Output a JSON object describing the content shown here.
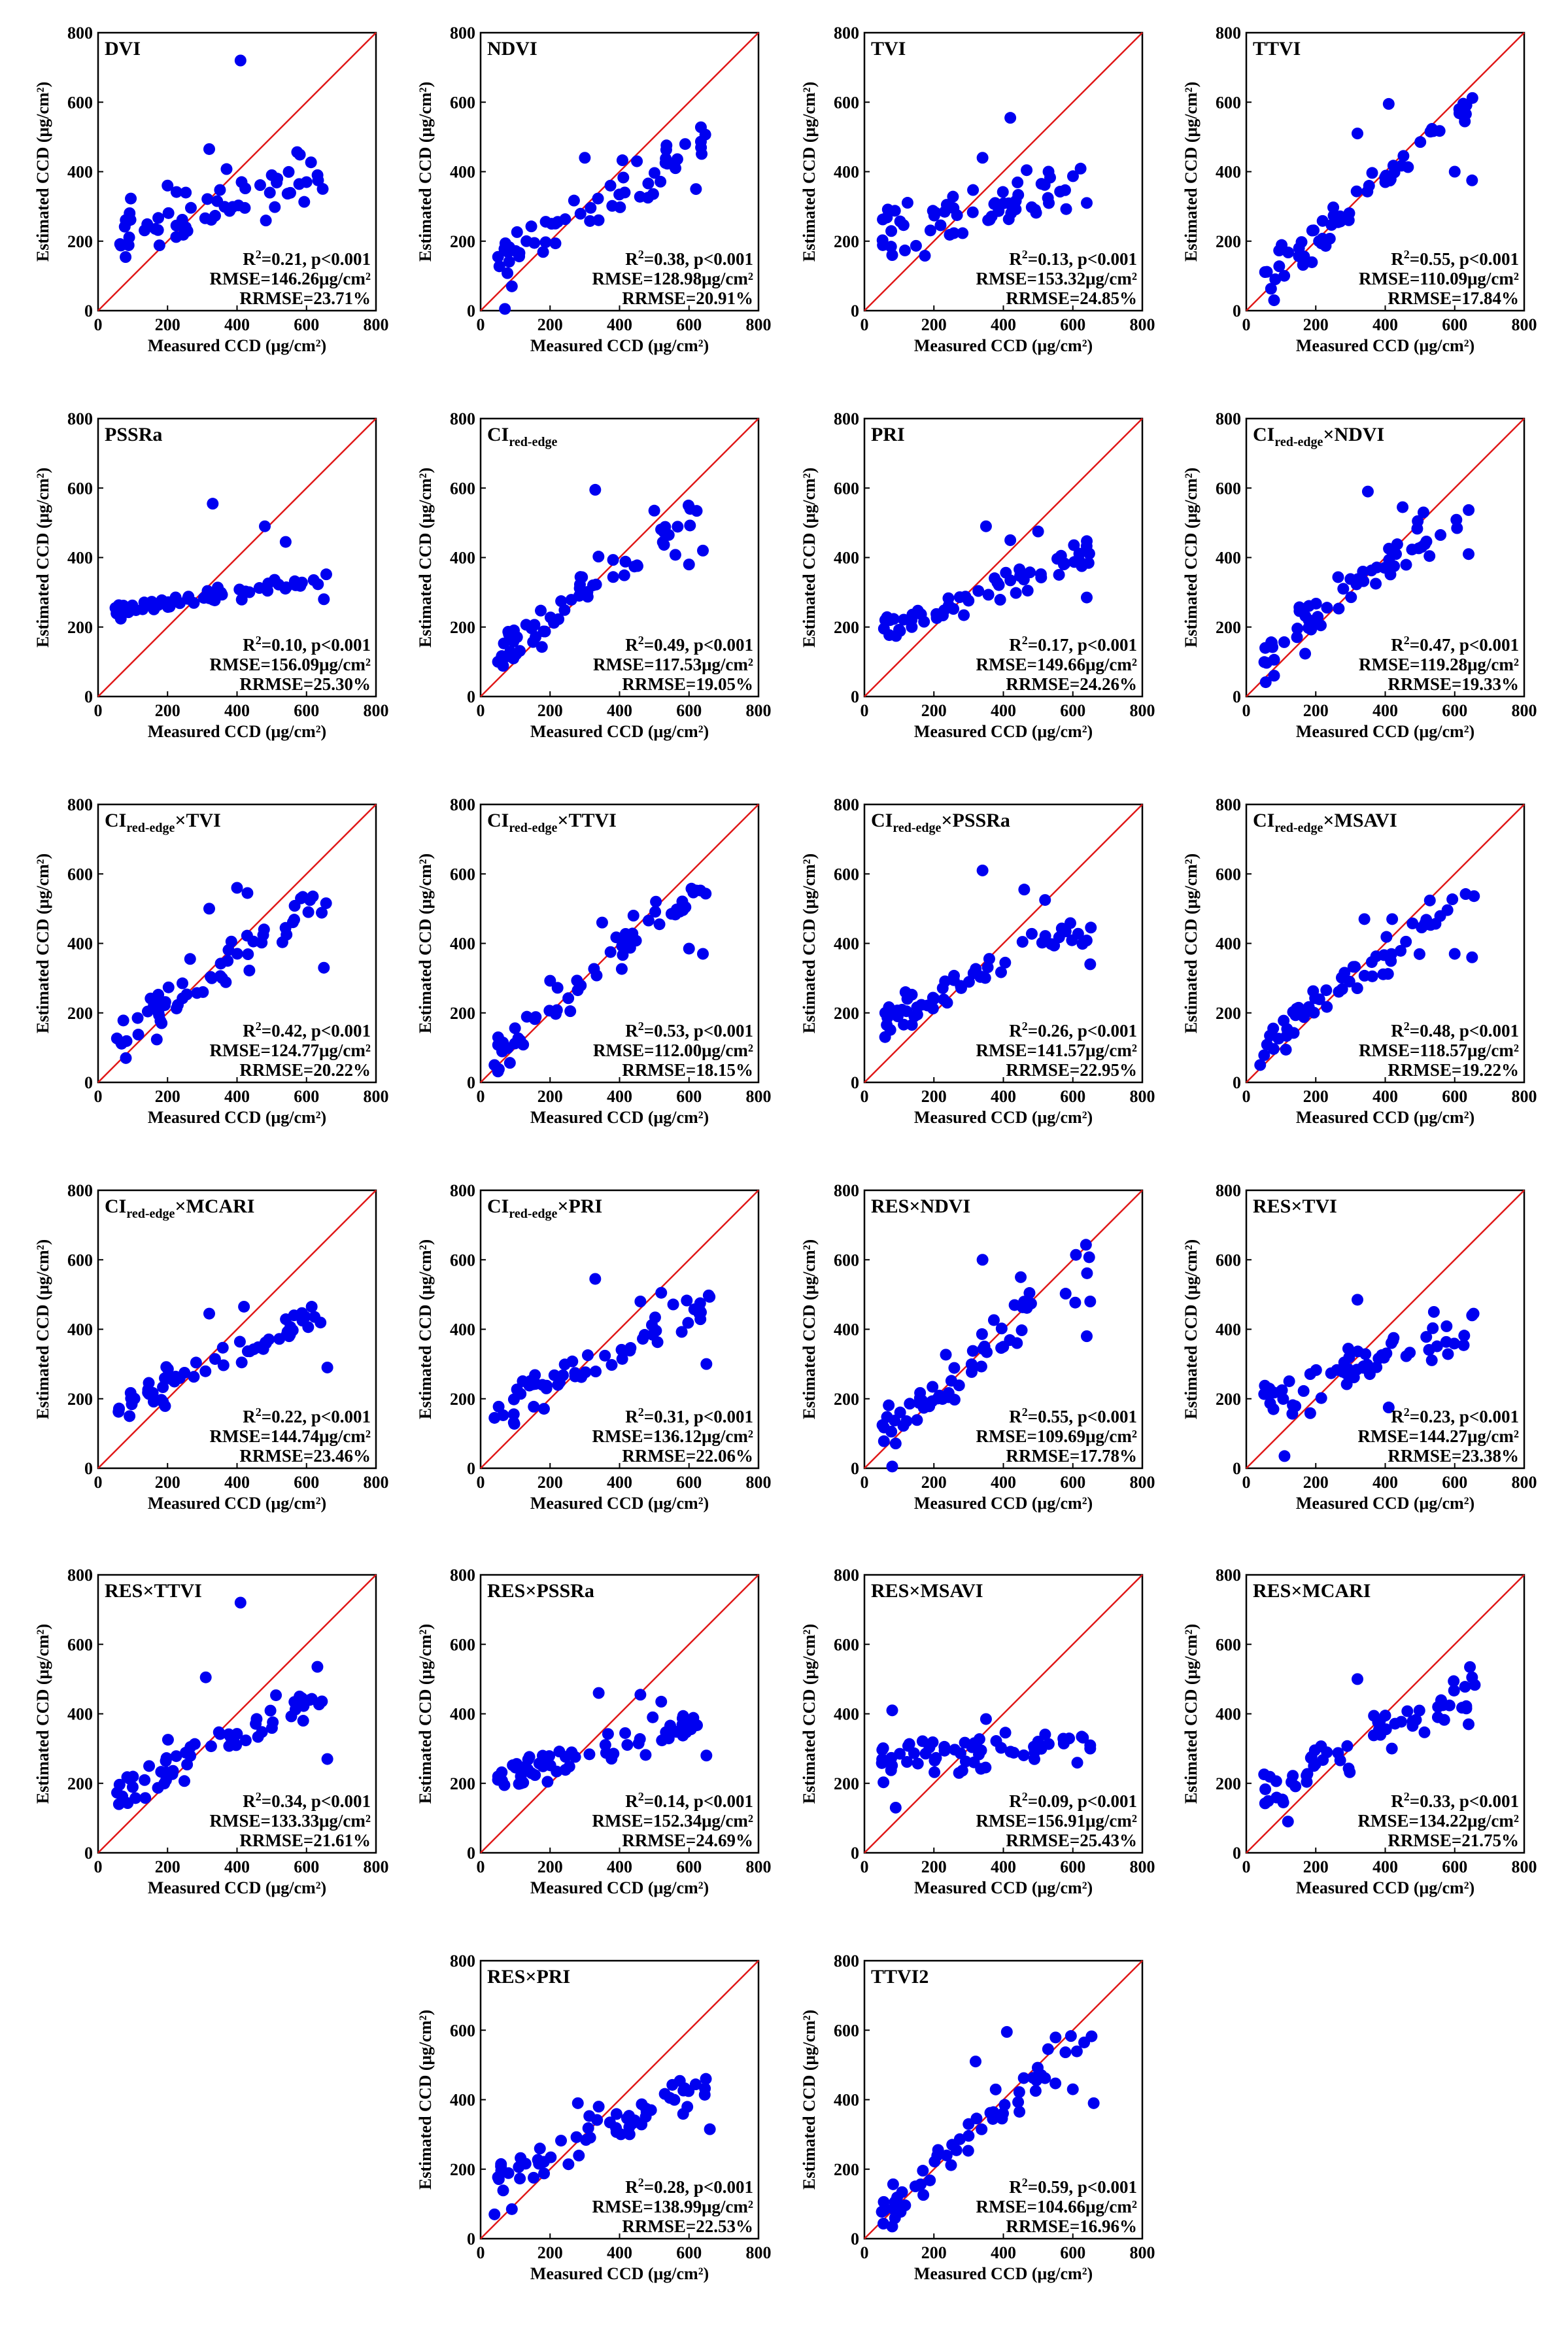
{
  "figure": {
    "xlabel": "Measured CCD (μg/cm²)",
    "ylabel": "Estimated CCD (μg/cm²)"
  },
  "chart_data": [
    {
      "type": "scatter",
      "title": "DVI",
      "xlim": [
        0,
        800
      ],
      "ylim": [
        0,
        800
      ],
      "r2": "0.21",
      "p": "p<0.001",
      "rmse": "146.26μg/cm²",
      "rrmse": "23.71%",
      "seed": 11,
      "spread": 0.55,
      "slope": 0.35,
      "x": [
        410,
        320,
        200,
        500,
        600
      ],
      "y": [
        720,
        465,
        360,
        390,
        370
      ]
    },
    {
      "type": "scatter",
      "title": "NDVI",
      "xlim": [
        0,
        800
      ],
      "ylim": [
        0,
        800
      ],
      "r2": "0.38",
      "p": "p<0.001",
      "rmse": "128.98μg/cm²",
      "rrmse": "20.91%",
      "seed": 12,
      "spread": 0.45,
      "slope": 0.55,
      "x": [
        70,
        90,
        300,
        450,
        620
      ],
      "y": [
        5,
        70,
        440,
        430,
        350
      ]
    },
    {
      "type": "scatter",
      "title": "TVI",
      "xlim": [
        0,
        800
      ],
      "ylim": [
        0,
        800
      ],
      "r2": "0.13",
      "p": "p<0.001",
      "rmse": "153.32μg/cm²",
      "rrmse": "24.85%",
      "seed": 13,
      "spread": 0.5,
      "slope": 0.25,
      "x": [
        420,
        80,
        340,
        530,
        640
      ],
      "y": [
        555,
        160,
        440,
        400,
        310
      ]
    },
    {
      "type": "scatter",
      "title": "TTVI",
      "xlim": [
        0,
        800
      ],
      "ylim": [
        0,
        800
      ],
      "r2": "0.55",
      "p": "p<0.001",
      "rmse": "110.09μg/cm²",
      "rrmse": "17.84%",
      "seed": 14,
      "spread": 0.35,
      "slope": 0.85,
      "x": [
        410,
        320,
        80,
        600,
        650
      ],
      "y": [
        595,
        510,
        30,
        400,
        375
      ]
    },
    {
      "type": "scatter",
      "title": "PSSRa",
      "xlim": [
        0,
        800
      ],
      "ylim": [
        0,
        800
      ],
      "r2": "0.10",
      "p": "p<0.001",
      "rmse": "156.09μg/cm²",
      "rrmse": "25.30%",
      "seed": 15,
      "spread": 0.12,
      "slope": 0.15,
      "x": [
        330,
        480,
        540,
        50,
        650
      ],
      "y": [
        555,
        490,
        445,
        255,
        280
      ]
    },
    {
      "type": "scatter",
      "title": "CI",
      "sub": "red-edge",
      "xlim": [
        0,
        800
      ],
      "ylim": [
        0,
        800
      ],
      "r2": "0.49",
      "p": "p<0.001",
      "rmse": "117.53μg/cm²",
      "rrmse": "19.05%",
      "seed": 16,
      "spread": 0.38,
      "slope": 0.75,
      "x": [
        330,
        500,
        50,
        640,
        600
      ],
      "y": [
        595,
        535,
        100,
        420,
        380
      ]
    },
    {
      "type": "scatter",
      "title": "PRI",
      "xlim": [
        0,
        800
      ],
      "ylim": [
        0,
        800
      ],
      "r2": "0.17",
      "p": "p<0.001",
      "rmse": "149.66μg/cm²",
      "rrmse": "24.26%",
      "seed": 17,
      "spread": 0.3,
      "slope": 0.35,
      "x": [
        350,
        500,
        60,
        640,
        420
      ],
      "y": [
        490,
        475,
        220,
        285,
        450
      ]
    },
    {
      "type": "scatter",
      "title": "CI",
      "sub": "red-edge",
      "suffix": "×NDVI",
      "xlim": [
        0,
        800
      ],
      "ylim": [
        0,
        800
      ],
      "r2": "0.47",
      "p": "p<0.001",
      "rmse": "119.28μg/cm²",
      "rrmse": "19.33%",
      "seed": 18,
      "spread": 0.38,
      "slope": 0.72,
      "x": [
        350,
        450,
        80,
        640,
        510
      ],
      "y": [
        590,
        545,
        60,
        410,
        530
      ]
    },
    {
      "type": "scatter",
      "title": "CI",
      "sub": "red-edge",
      "suffix": "×TVI",
      "xlim": [
        0,
        800
      ],
      "ylim": [
        0,
        800
      ],
      "r2": "0.42",
      "p": "p<0.001",
      "rmse": "124.77μg/cm²",
      "rrmse": "20.22%",
      "seed": 19,
      "spread": 0.42,
      "slope": 0.7,
      "x": [
        400,
        430,
        320,
        80,
        650
      ],
      "y": [
        560,
        545,
        500,
        70,
        330
      ]
    },
    {
      "type": "scatter",
      "title": "CI",
      "sub": "red-edge",
      "suffix": "×TTVI",
      "xlim": [
        0,
        800
      ],
      "ylim": [
        0,
        800
      ],
      "r2": "0.53",
      "p": "p<0.001",
      "rmse": "112.00μg/cm²",
      "rrmse": "18.15%",
      "seed": 20,
      "spread": 0.35,
      "slope": 0.8,
      "x": [
        440,
        350,
        40,
        640,
        600
      ],
      "y": [
        480,
        460,
        50,
        370,
        385
      ]
    },
    {
      "type": "scatter",
      "title": "CI",
      "sub": "red-edge",
      "suffix": "×PSSRa",
      "xlim": [
        0,
        800
      ],
      "ylim": [
        0,
        800
      ],
      "r2": "0.26",
      "p": "p<0.001",
      "rmse": "141.57μg/cm²",
      "rrmse": "22.95%",
      "seed": 21,
      "spread": 0.3,
      "slope": 0.45,
      "x": [
        340,
        460,
        520,
        60,
        650
      ],
      "y": [
        610,
        555,
        525,
        200,
        340
      ]
    },
    {
      "type": "scatter",
      "title": "CI",
      "sub": "red-edge",
      "suffix": "×MSAVI",
      "xlim": [
        0,
        800
      ],
      "ylim": [
        0,
        800
      ],
      "r2": "0.48",
      "p": "p<0.001",
      "rmse": "118.57μg/cm²",
      "rrmse": "19.22%",
      "seed": 22,
      "spread": 0.35,
      "slope": 0.72,
      "x": [
        340,
        420,
        40,
        650,
        600
      ],
      "y": [
        470,
        470,
        50,
        360,
        370
      ]
    },
    {
      "type": "scatter",
      "title": "CI",
      "sub": "red-edge",
      "suffix": "×MCARI",
      "xlim": [
        0,
        800
      ],
      "ylim": [
        0,
        800
      ],
      "r2": "0.22",
      "p": "p<0.001",
      "rmse": "144.74μg/cm²",
      "rrmse": "23.46%",
      "seed": 23,
      "spread": 0.35,
      "slope": 0.45,
      "x": [
        420,
        320,
        60,
        660,
        550
      ],
      "y": [
        465,
        445,
        170,
        290,
        380
      ]
    },
    {
      "type": "scatter",
      "title": "CI",
      "sub": "red-edge",
      "suffix": "×PRI",
      "xlim": [
        0,
        800
      ],
      "ylim": [
        0,
        800
      ],
      "r2": "0.31",
      "p": "p<0.001",
      "rmse": "136.12μg/cm²",
      "rrmse": "22.06%",
      "seed": 24,
      "spread": 0.35,
      "slope": 0.55,
      "x": [
        330,
        520,
        40,
        650,
        460
      ],
      "y": [
        545,
        505,
        145,
        300,
        480
      ]
    },
    {
      "type": "scatter",
      "title": "RES×NDVI",
      "xlim": [
        0,
        800
      ],
      "ylim": [
        0,
        800
      ],
      "r2": "0.55",
      "p": "p<0.001",
      "rmse": "109.69μg/cm²",
      "rrmse": "17.78%",
      "seed": 25,
      "spread": 0.4,
      "slope": 0.85,
      "x": [
        340,
        450,
        80,
        650,
        640
      ],
      "y": [
        600,
        550,
        5,
        480,
        380
      ]
    },
    {
      "type": "scatter",
      "title": "RES×TVI",
      "xlim": [
        0,
        800
      ],
      "ylim": [
        0,
        800
      ],
      "r2": "0.23",
      "p": "p<0.001",
      "rmse": "144.27μg/cm²",
      "rrmse": "23.38%",
      "seed": 26,
      "spread": 0.5,
      "slope": 0.35,
      "x": [
        320,
        540,
        110,
        650,
        410
      ],
      "y": [
        485,
        450,
        35,
        440,
        175
      ]
    },
    {
      "type": "scatter",
      "title": "RES×TTVI",
      "xlim": [
        0,
        800
      ],
      "ylim": [
        0,
        800
      ],
      "r2": "0.34",
      "p": "p<0.001",
      "rmse": "133.33μg/cm²",
      "rrmse": "21.61%",
      "seed": 27,
      "spread": 0.45,
      "slope": 0.45,
      "x": [
        410,
        310,
        60,
        660,
        580
      ],
      "y": [
        720,
        505,
        140,
        270,
        450
      ]
    },
    {
      "type": "scatter",
      "title": "RES×PSSRa",
      "xlim": [
        0,
        800
      ],
      "ylim": [
        0,
        800
      ],
      "r2": "0.14",
      "p": "p<0.001",
      "rmse": "152.34μg/cm²",
      "rrmse": "24.69%",
      "seed": 28,
      "spread": 0.3,
      "slope": 0.3,
      "x": [
        340,
        460,
        50,
        650,
        520
      ],
      "y": [
        460,
        455,
        210,
        280,
        435
      ]
    },
    {
      "type": "scatter",
      "title": "RES×MSAVI",
      "xlim": [
        0,
        800
      ],
      "ylim": [
        0,
        800
      ],
      "r2": "0.09",
      "p": "p<0.001",
      "rmse": "156.91μg/cm²",
      "rrmse": "25.43%",
      "seed": 29,
      "spread": 0.35,
      "slope": 0.1,
      "x": [
        80,
        350,
        90,
        650,
        500
      ],
      "y": [
        410,
        385,
        130,
        300,
        320
      ]
    },
    {
      "type": "scatter",
      "title": "RES×MCARI",
      "xlim": [
        0,
        800
      ],
      "ylim": [
        0,
        800
      ],
      "r2": "0.33",
      "p": "p<0.001",
      "rmse": "134.22μg/cm²",
      "rrmse": "21.75%",
      "seed": 30,
      "spread": 0.45,
      "slope": 0.5,
      "x": [
        320,
        650,
        120,
        640,
        400
      ],
      "y": [
        500,
        505,
        90,
        370,
        395
      ]
    },
    {
      "type": "scatter",
      "title": "RES×PRI",
      "xlim": [
        0,
        800
      ],
      "ylim": [
        0,
        800
      ],
      "r2": "0.28",
      "p": "p<0.001",
      "rmse": "138.99μg/cm²",
      "rrmse": "22.53%",
      "seed": 31,
      "spread": 0.3,
      "slope": 0.45,
      "x": [
        40,
        280,
        90,
        660,
        340
      ],
      "y": [
        70,
        390,
        85,
        315,
        380
      ]
    },
    {
      "type": "scatter",
      "title": "TTVI2",
      "xlim": [
        0,
        800
      ],
      "ylim": [
        0,
        800
      ],
      "r2": "0.59",
      "p": "p<0.001",
      "rmse": "104.66μg/cm²",
      "rrmse": "16.96%",
      "seed": 32,
      "spread": 0.35,
      "slope": 0.88,
      "x": [
        410,
        320,
        80,
        600,
        660
      ],
      "y": [
        595,
        510,
        35,
        430,
        390
      ]
    }
  ]
}
